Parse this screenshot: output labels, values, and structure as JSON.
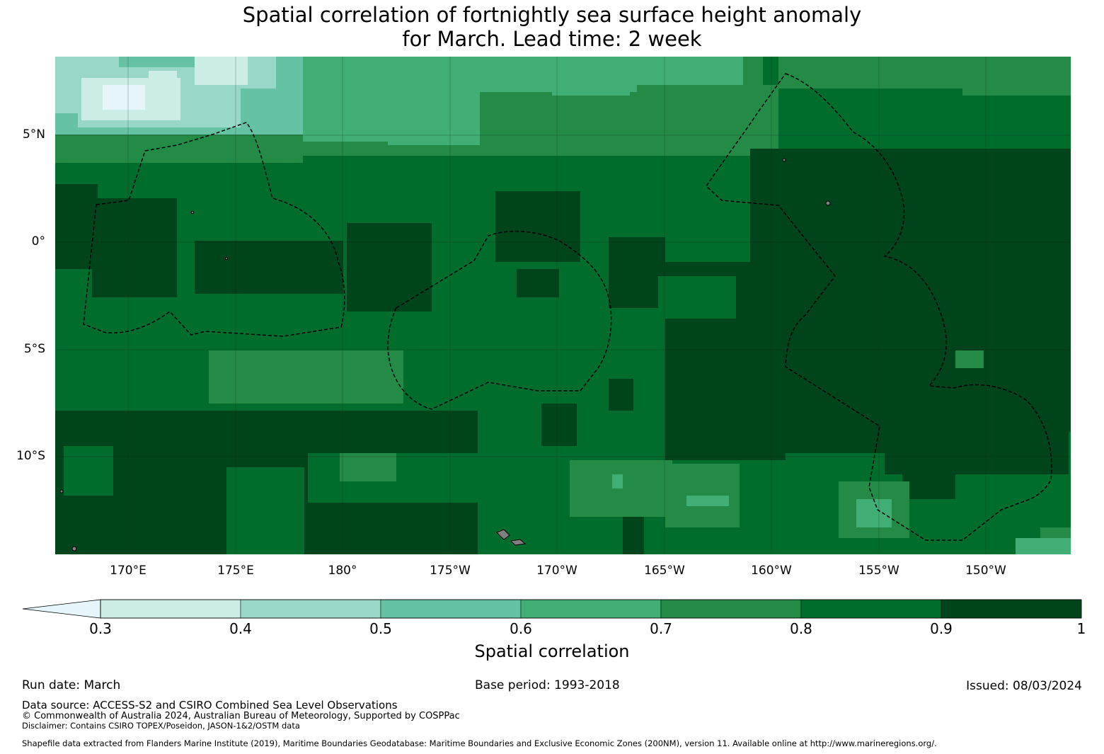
{
  "title": {
    "line1": "Spatial correlation of fortnightly sea surface height anomaly",
    "line2": "for March. Lead time: 2 week"
  },
  "map": {
    "lat_labels": [
      "5°N",
      "0°",
      "5°S",
      "10°S"
    ],
    "lon_labels": [
      "170°E",
      "175°E",
      "180°",
      "175°W",
      "170°W",
      "165°W",
      "160°W",
      "155°W",
      "150°W"
    ],
    "grid": "on",
    "boundaries": "dashed EEZ outlines",
    "land_color": "#808080"
  },
  "colorbar": {
    "label": "Spatial correlation",
    "ticks": [
      "0.3",
      "0.4",
      "0.5",
      "0.6",
      "0.7",
      "0.8",
      "0.9",
      "1"
    ],
    "extend": "min",
    "colors": [
      "#e5f5f9",
      "#ccece6",
      "#99d8c9",
      "#66c2a4",
      "#41ae76",
      "#238b45",
      "#006d2c",
      "#00441b"
    ]
  },
  "footer": {
    "run_date": "Run date: March",
    "base_period": "Base period: 1993-2018",
    "issued": "Issued: 08/03/2024",
    "data_source": "Data source: ACCESS-S2 and CSIRO Combined Sea Level Observations",
    "copyright": "© Commonwealth of Australia 2024, Australian Bureau of Meteorology, Supported by COSPPac",
    "disclaimer": "Disclaimer: Contains CSIRO TOPEX/Poseidon, JASON-1&2/OSTM data",
    "shapefile": "Shapefile data extracted from Flanders Marine Institute (2019), Maritime Boundaries Geodatabase: Maritime Boundaries and Exclusive Economic Zones (200NM), version 11. Available online at http://www.marineregions.org/."
  }
}
